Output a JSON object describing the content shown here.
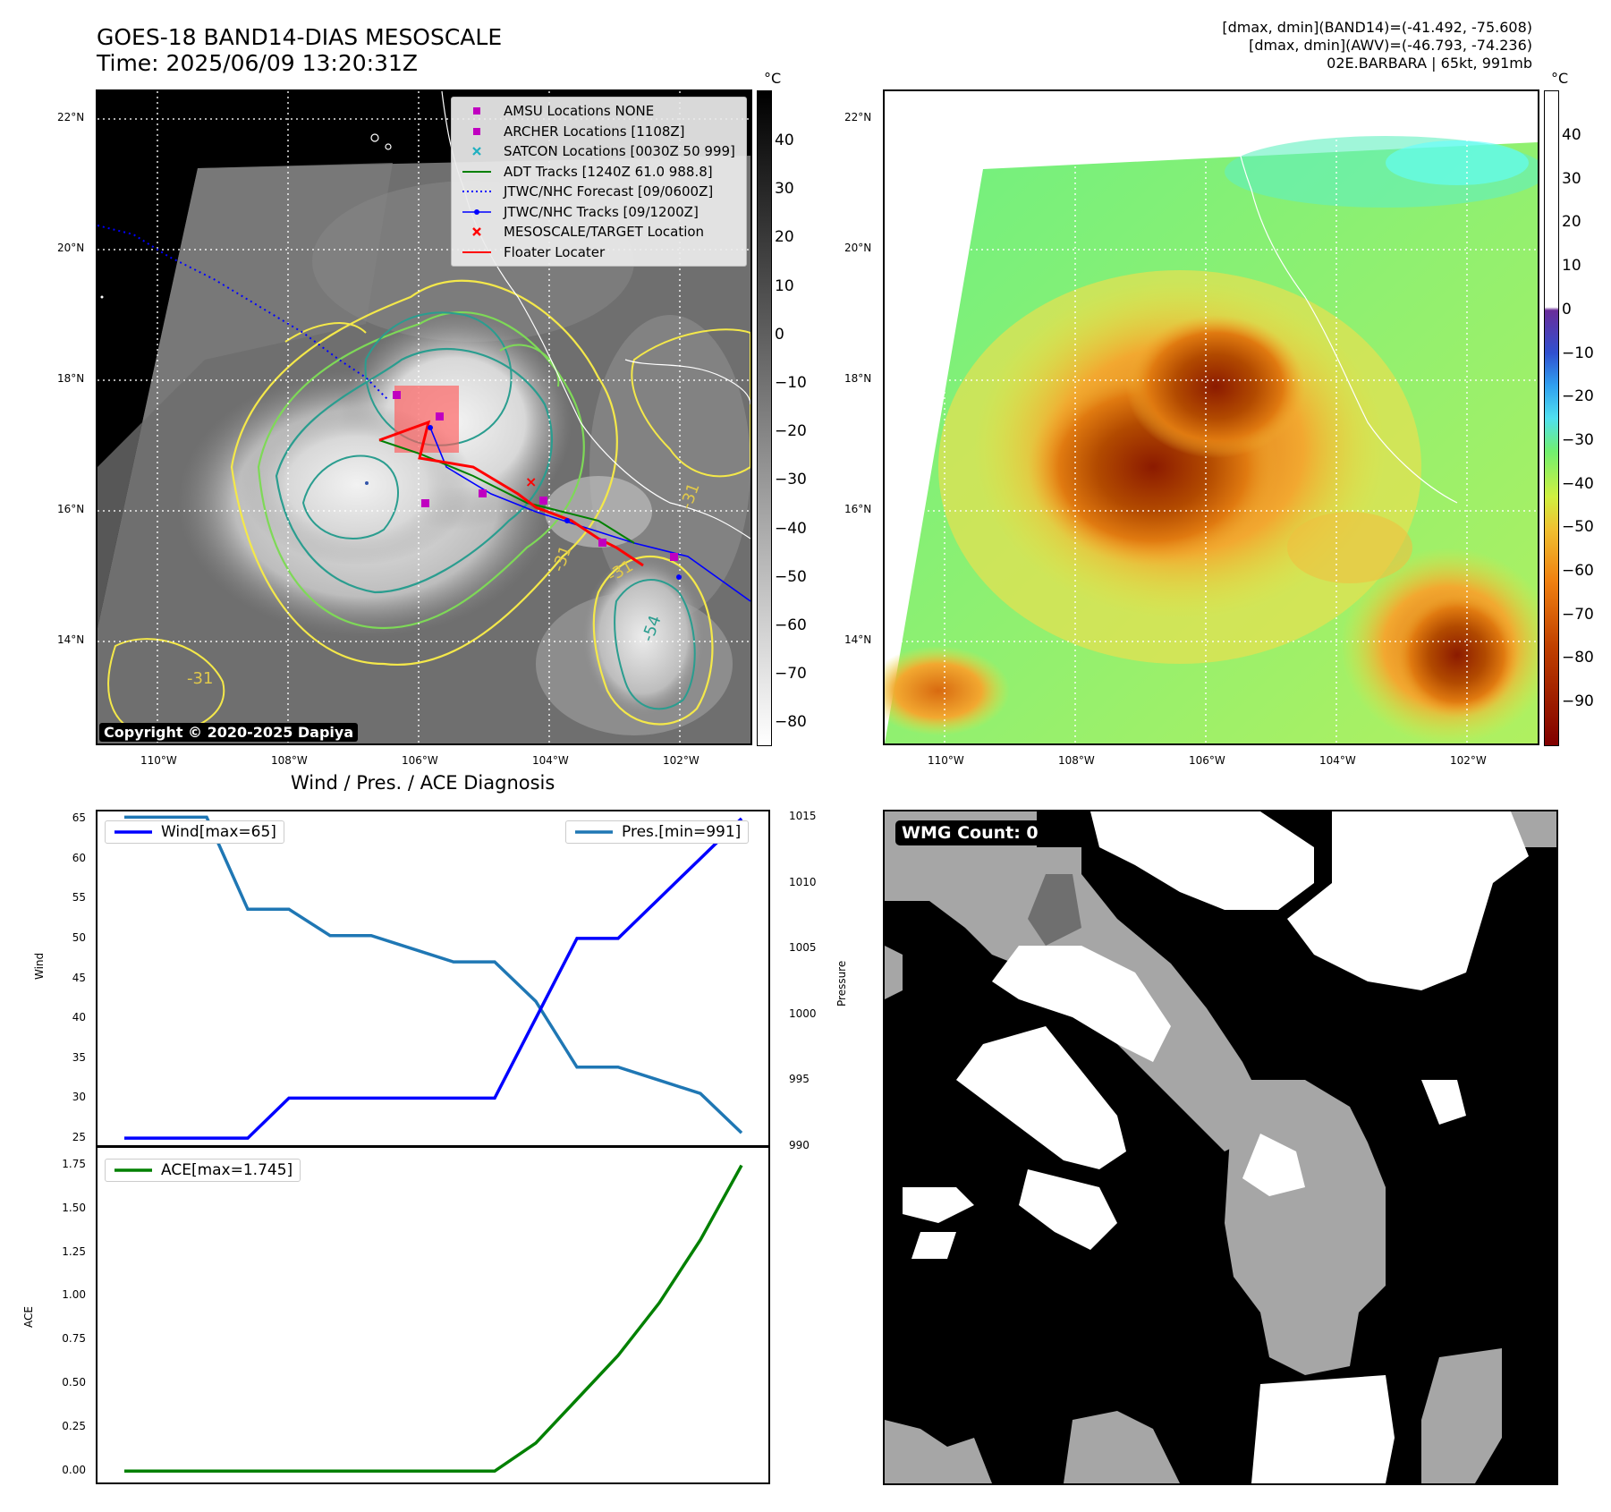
{
  "header": {
    "title_line1": "GOES-18 BAND14-DIAS MESOSCALE",
    "title_line2": "Time: 2025/06/09 13:20:31Z",
    "info_line1": "[dmax, dmin](BAND14)=(-41.492, -75.608)",
    "info_line2": "[dmax, dmin](AWV)=(-46.793, -74.236)",
    "info_line3": "02E.BARBARA | 65kt, 991mb"
  },
  "map_left": {
    "lat_labels": [
      "22°N",
      "20°N",
      "18°N",
      "16°N",
      "14°N"
    ],
    "lon_labels": [
      "110°W",
      "108°W",
      "106°W",
      "104°W",
      "102°W"
    ],
    "colorbar_unit": "°C",
    "colorbar_ticks": [
      "40",
      "30",
      "20",
      "10",
      "0",
      "−10",
      "−20",
      "−30",
      "−40",
      "−50",
      "−60",
      "−70",
      "−80"
    ],
    "contour_labels": [
      "-31",
      "-54",
      "-31",
      "-31",
      "-31"
    ],
    "copyright": "Copyright © 2020-2025 Dapiya",
    "legend": [
      {
        "label": "AMSU Locations NONE",
        "symbol": "square",
        "color": "#c000c0"
      },
      {
        "label": "ARCHER Locations [1108Z]",
        "symbol": "square",
        "color": "#c000c0"
      },
      {
        "label": "SATCON Locations [0030Z 50 999]",
        "symbol": "x",
        "color": "#20b0c0"
      },
      {
        "label": "ADT Tracks [1240Z 61.0 988.8]",
        "symbol": "line",
        "color": "#008000"
      },
      {
        "label": "JTWC/NHC Forecast [09/0600Z]",
        "symbol": "dotted",
        "color": "#0000ff"
      },
      {
        "label": "JTWC/NHC Tracks [09/1200Z]",
        "symbol": "line-dot",
        "color": "#0000ff"
      },
      {
        "label": "MESOSCALE/TARGET Location",
        "symbol": "x",
        "color": "#ff0000"
      },
      {
        "label": "Floater Locater",
        "symbol": "line",
        "color": "#ff0000"
      }
    ]
  },
  "map_right": {
    "lat_labels": [
      "22°N",
      "20°N",
      "18°N",
      "16°N",
      "14°N"
    ],
    "lon_labels": [
      "110°W",
      "108°W",
      "106°W",
      "104°W",
      "102°W"
    ],
    "colorbar_unit": "°C",
    "colorbar_ticks": [
      "40",
      "30",
      "20",
      "10",
      "0",
      "−10",
      "−20",
      "−30",
      "−40",
      "−50",
      "−60",
      "−70",
      "−80",
      "−90"
    ]
  },
  "wmg": {
    "label": "WMG Count: 0"
  },
  "chart_data": [
    {
      "type": "line",
      "title": "Wind / Pres. / ACE Diagnosis",
      "ylabel": "Wind",
      "ylabel_right": "Pressure",
      "ylim": [
        24,
        66
      ],
      "ylim_right": [
        990,
        1015.5
      ],
      "yticks": [
        "65",
        "60",
        "55",
        "50",
        "45",
        "40",
        "35",
        "30",
        "25"
      ],
      "yticks_right": [
        "1015",
        "1010",
        "1005",
        "1000",
        "995",
        "990"
      ],
      "series": [
        {
          "name": "Wind[max=65]",
          "color": "#0000ff",
          "values": [
            25,
            25,
            25,
            25,
            30,
            30,
            30,
            30,
            30,
            30,
            40,
            50,
            50,
            55,
            60,
            65
          ]
        },
        {
          "name": "Pres.[min=991]",
          "color": "#1f77b4",
          "axis": "right",
          "values": [
            1015,
            1015,
            1015,
            1008,
            1008,
            1006,
            1006,
            1005,
            1004,
            1004,
            1001,
            996,
            996,
            995,
            994,
            991
          ]
        }
      ]
    },
    {
      "type": "line",
      "ylabel": "ACE",
      "ylim": [
        -0.07,
        1.85
      ],
      "yticks": [
        "1.75",
        "1.50",
        "1.25",
        "1.00",
        "0.75",
        "0.50",
        "0.25",
        "0.00"
      ],
      "series": [
        {
          "name": "ACE[max=1.745]",
          "color": "#008000",
          "values": [
            0,
            0,
            0,
            0,
            0,
            0,
            0,
            0,
            0,
            0,
            0.16,
            0.41,
            0.66,
            0.96,
            1.32,
            1.745
          ]
        }
      ]
    }
  ]
}
